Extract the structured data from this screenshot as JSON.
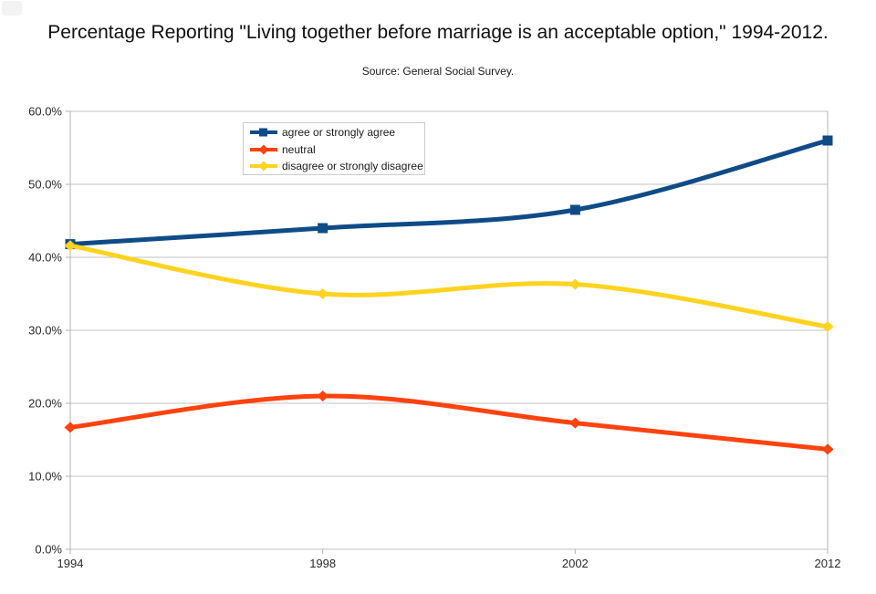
{
  "page": {
    "background": "#ffffff"
  },
  "chart_data": {
    "type": "line",
    "title": "Percentage Reporting \"Living together before marriage is an acceptable option,\" 1994-2012.",
    "subtitle": "Source: General Social Survey.",
    "categories": [
      "1994",
      "1998",
      "2002",
      "2012"
    ],
    "series": [
      {
        "name": "agree or strongly agree",
        "color": "#0F4C87",
        "marker": "square",
        "values": [
          41.8,
          44.0,
          46.5,
          56.0
        ]
      },
      {
        "name": "neutral",
        "color": "#FF420E",
        "marker": "diamond",
        "values": [
          16.7,
          21.0,
          17.3,
          13.7
        ]
      },
      {
        "name": "disagree or strongly disagree",
        "color": "#FFD320",
        "marker": "diamond",
        "values": [
          41.6,
          35.0,
          36.3,
          30.5
        ]
      }
    ],
    "y_axis": {
      "min": 0,
      "max": 60,
      "step": 10,
      "tick_labels": [
        "0.0%",
        "10.0%",
        "20.0%",
        "30.0%",
        "40.0%",
        "50.0%",
        "60.0%"
      ]
    },
    "x_axis": {
      "tick_labels": [
        "1994",
        "1998",
        "2002",
        "2012"
      ]
    },
    "grid": "horizontal",
    "smooth": true,
    "legend_position": "top-left-inside",
    "colors": {
      "gridline": "#c0c0c0",
      "axis": "#b3b3b3",
      "tick_text": "#2a2a2a"
    }
  }
}
